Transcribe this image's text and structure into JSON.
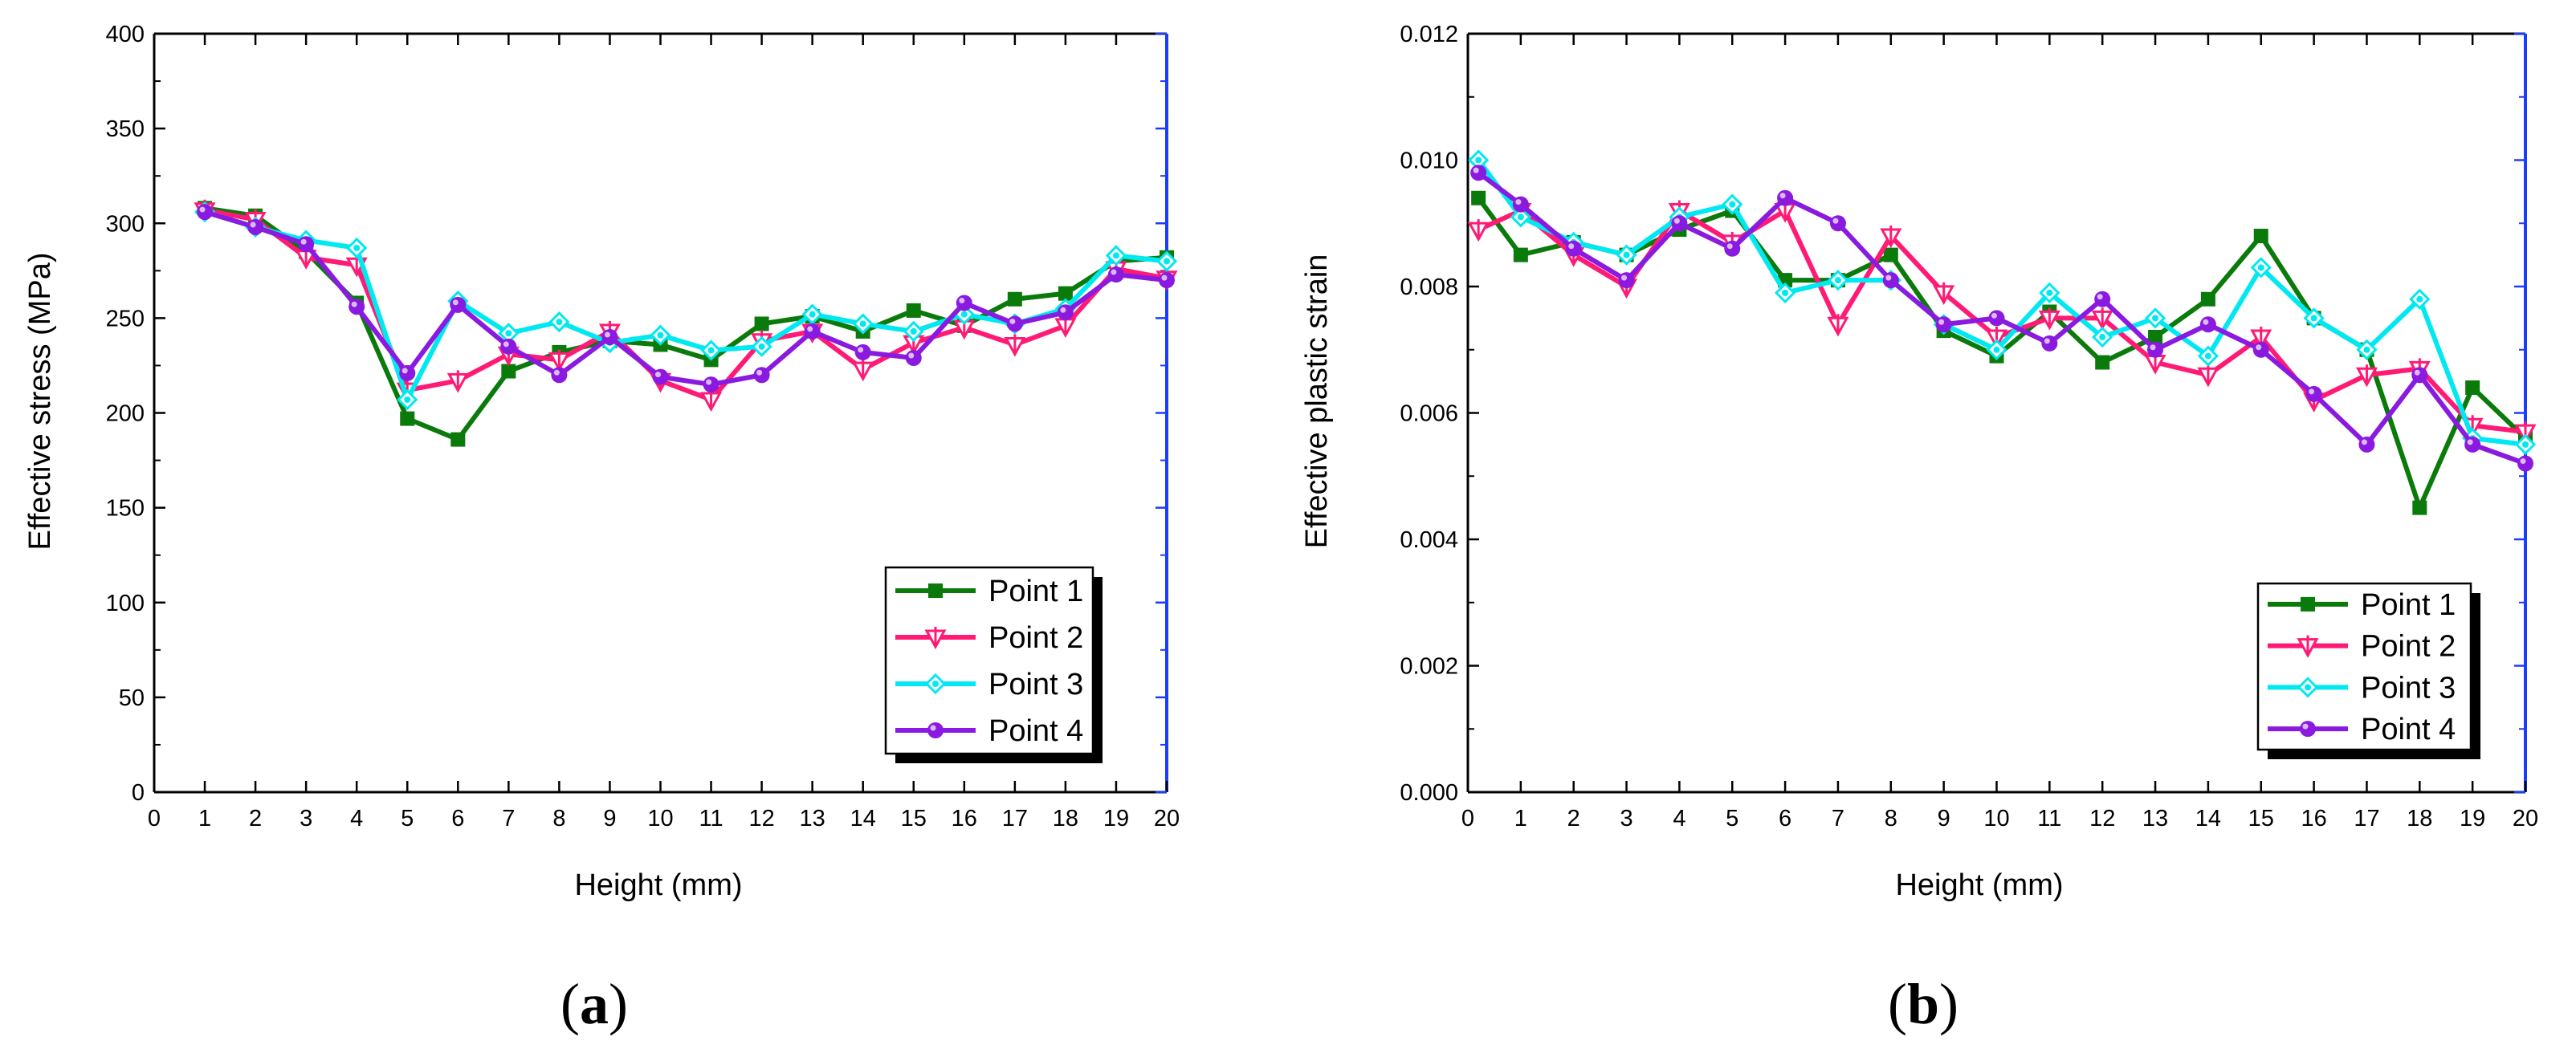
{
  "chart_data": [
    {
      "type": "line",
      "panel_label": "a",
      "xlabel": "Height (mm)",
      "ylabel": "Effective stress (MPa)",
      "xlim": [
        0,
        20
      ],
      "ylim": [
        0,
        400
      ],
      "xticks": [
        "0",
        "1",
        "2",
        "3",
        "4",
        "5",
        "6",
        "7",
        "8",
        "9",
        "10",
        "11",
        "12",
        "13",
        "14",
        "15",
        "16",
        "17",
        "18",
        "19",
        "20"
      ],
      "yticks": [
        "0",
        "50",
        "100",
        "150",
        "200",
        "250",
        "300",
        "350",
        "400"
      ],
      "legend_position": "lower-right",
      "x": [
        1,
        2,
        3,
        4,
        5,
        6,
        7,
        8,
        9,
        10,
        11,
        12,
        13,
        14,
        15,
        16,
        17,
        18,
        19,
        20
      ],
      "series": [
        {
          "name": "Point 1",
          "color": "#0a7a0a",
          "marker": "square",
          "values": [
            308,
            304,
            285,
            258,
            197,
            186,
            222,
            232,
            238,
            236,
            228,
            247,
            251,
            243,
            254,
            246,
            260,
            263,
            280,
            282
          ]
        },
        {
          "name": "Point 2",
          "color": "#ff1a75",
          "marker": "tri-down",
          "values": [
            307,
            302,
            282,
            278,
            212,
            217,
            231,
            228,
            243,
            217,
            207,
            238,
            243,
            223,
            237,
            245,
            236,
            246,
            276,
            271
          ]
        },
        {
          "name": "Point 3",
          "color": "#00e8f0",
          "marker": "diamond",
          "values": [
            306,
            298,
            291,
            287,
            207,
            259,
            242,
            248,
            237,
            241,
            233,
            235,
            252,
            247,
            243,
            252,
            247,
            255,
            283,
            280
          ]
        },
        {
          "name": "Point 4",
          "color": "#8a1ae0",
          "marker": "circle",
          "values": [
            306,
            298,
            289,
            256,
            221,
            257,
            235,
            220,
            240,
            219,
            215,
            220,
            243,
            232,
            229,
            258,
            247,
            253,
            273,
            270
          ]
        }
      ]
    },
    {
      "type": "line",
      "panel_label": "b",
      "xlabel": "Height (mm)",
      "ylabel": "Effective plastic strain",
      "xlim": [
        0,
        20
      ],
      "ylim": [
        0,
        0.012
      ],
      "xticks": [
        "0",
        "1",
        "2",
        "3",
        "4",
        "5",
        "6",
        "7",
        "8",
        "9",
        "10",
        "11",
        "12",
        "13",
        "14",
        "15",
        "16",
        "17",
        "18",
        "19",
        "20"
      ],
      "yticks": [
        "0.000",
        "0.002",
        "0.004",
        "0.006",
        "0.008",
        "0.010",
        "0.012"
      ],
      "legend_position": "lower-right",
      "x": [
        0.2,
        1,
        2,
        3,
        4,
        5,
        6,
        7,
        8,
        9,
        10,
        11,
        12,
        13,
        14,
        15,
        16,
        17,
        18,
        19,
        20
      ],
      "series": [
        {
          "name": "Point 1",
          "color": "#0a7a0a",
          "marker": "square",
          "values": [
            0.0094,
            0.0085,
            0.0087,
            0.0085,
            0.0089,
            0.0092,
            0.0081,
            0.0081,
            0.0085,
            0.0073,
            0.0069,
            0.0076,
            0.0068,
            0.0072,
            0.0078,
            0.0088,
            0.0075,
            0.007,
            0.0045,
            0.0064,
            0.0056
          ]
        },
        {
          "name": "Point 2",
          "color": "#ff1a75",
          "marker": "tri-down",
          "values": [
            0.0089,
            0.0092,
            0.0085,
            0.008,
            0.0092,
            0.0087,
            0.0092,
            0.0074,
            0.0088,
            0.0079,
            0.0072,
            0.0075,
            0.0075,
            0.0068,
            0.0066,
            0.0072,
            0.0062,
            0.0066,
            0.0067,
            0.0058,
            0.0057
          ]
        },
        {
          "name": "Point 3",
          "color": "#00e8f0",
          "marker": "diamond",
          "values": [
            0.01,
            0.0091,
            0.0087,
            0.0085,
            0.0091,
            0.0093,
            0.0079,
            0.0081,
            0.0081,
            0.0074,
            0.007,
            0.0079,
            0.0072,
            0.0075,
            0.0069,
            0.0083,
            0.0075,
            0.007,
            0.0078,
            0.0056,
            0.0055
          ]
        },
        {
          "name": "Point 4",
          "color": "#8a1ae0",
          "marker": "circle",
          "values": [
            0.0098,
            0.0093,
            0.0086,
            0.0081,
            0.009,
            0.0086,
            0.0094,
            0.009,
            0.0081,
            0.0074,
            0.0075,
            0.0071,
            0.0078,
            0.007,
            0.0074,
            0.007,
            0.0063,
            0.0055,
            0.0066,
            0.0055,
            0.0052
          ]
        }
      ]
    }
  ]
}
